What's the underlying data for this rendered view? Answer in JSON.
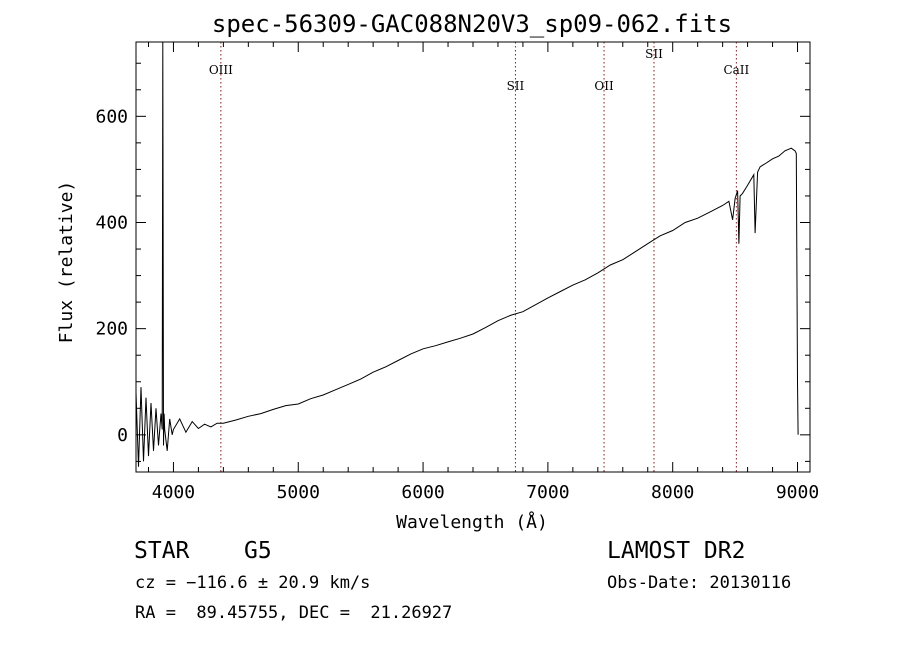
{
  "chart_data": {
    "type": "line",
    "title": "spec-56309-GAC088N20V3_sp09-062.fits",
    "xlabel": "Wavelength (Å)",
    "ylabel": "Flux (relative)",
    "xlim": [
      3700,
      9100
    ],
    "ylim": [
      -70,
      740
    ],
    "xticks": [
      4000,
      5000,
      6000,
      7000,
      8000,
      9000
    ],
    "yticks": [
      0,
      200,
      400,
      600
    ],
    "grid": false,
    "line_color": "#000000",
    "marker_color": "#8b1a1a",
    "lines": [
      {
        "label": "OIII",
        "wavelength": 4380,
        "label_flux": 680
      },
      {
        "label": "SII",
        "wavelength": 6740,
        "label_flux": 650
      },
      {
        "label": "OII",
        "wavelength": 7450,
        "label_flux": 650
      },
      {
        "label": "SII",
        "wavelength": 7850,
        "label_flux": 710
      },
      {
        "label": "CaII",
        "wavelength": 8510,
        "label_flux": 680
      }
    ],
    "series": [
      {
        "x": [
          3700,
          3720,
          3740,
          3760,
          3780,
          3800,
          3820,
          3840,
          3860,
          3880,
          3900,
          3910,
          3915,
          3920,
          3925,
          3930,
          3950,
          3970,
          3990,
          4000,
          4050,
          4100,
          4150,
          4200,
          4250,
          4300,
          4350,
          4400,
          4450,
          4500,
          4600,
          4700,
          4800,
          4900,
          5000,
          5100,
          5200,
          5300,
          5400,
          5500,
          5600,
          5700,
          5800,
          5900,
          6000,
          6100,
          6200,
          6300,
          6400,
          6500,
          6600,
          6700,
          6800,
          6900,
          7000,
          7100,
          7200,
          7300,
          7400,
          7500,
          7600,
          7700,
          7800,
          7900,
          8000,
          8100,
          8200,
          8300,
          8400,
          8450,
          8480,
          8500,
          8520,
          8530,
          8540,
          8560,
          8600,
          8650,
          8660,
          8680,
          8700,
          8750,
          8800,
          8850,
          8900,
          8950,
          8980,
          8990,
          9000,
          9005
        ],
        "y": [
          80,
          -60,
          90,
          -50,
          70,
          -40,
          60,
          -30,
          50,
          -20,
          40,
          10,
          740,
          -20,
          40,
          10,
          -30,
          30,
          0,
          10,
          30,
          5,
          25,
          12,
          20,
          15,
          22,
          22,
          25,
          28,
          35,
          40,
          48,
          55,
          58,
          68,
          75,
          85,
          95,
          105,
          118,
          128,
          140,
          152,
          162,
          168,
          175,
          182,
          190,
          202,
          215,
          225,
          232,
          245,
          258,
          270,
          282,
          292,
          305,
          320,
          330,
          345,
          360,
          375,
          385,
          400,
          408,
          420,
          432,
          440,
          405,
          445,
          460,
          360,
          450,
          455,
          470,
          490,
          380,
          495,
          505,
          512,
          520,
          525,
          535,
          540,
          535,
          530,
          100,
          0
        ]
      }
    ]
  },
  "info": {
    "object_type": "STAR",
    "subclass": "G5",
    "survey": "LAMOST DR2",
    "redshift": "cz = −116.6 ± 20.9 km/s",
    "obs_date": "Obs-Date: 20130116",
    "coords": "RA =  89.45755, DEC =  21.26927"
  }
}
